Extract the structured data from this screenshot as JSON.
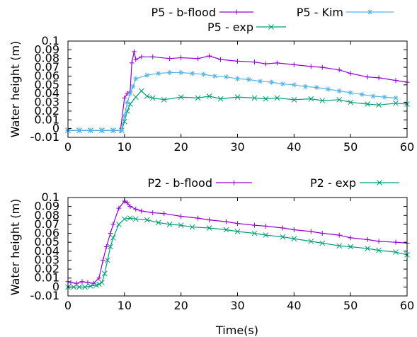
{
  "chart_data": [
    {
      "type": "line",
      "title": "",
      "xlabel": "",
      "ylabel": "Water height (m)",
      "xlim": [
        0,
        60
      ],
      "ylim": [
        -0.01,
        0.1
      ],
      "xticks": [
        "0",
        "10",
        "20",
        "30",
        "40",
        "50",
        "60"
      ],
      "yticks": [
        "-0.01",
        "0",
        "0.01",
        "0.02",
        "0.03",
        "0.04",
        "0.05",
        "0.06",
        "0.07",
        "0.08",
        "0.09",
        "0.1"
      ],
      "grid": false,
      "legend_position": "top",
      "series": [
        {
          "name": "P5 - b-flood",
          "color": "#9400d3",
          "marker": "plus",
          "x": [
            -0.5,
            2,
            4,
            6,
            8,
            9.3,
            10,
            10.5,
            11,
            11.3,
            11.7,
            12,
            13,
            15,
            18,
            20,
            23,
            25,
            27,
            30,
            33,
            35,
            37,
            40,
            43,
            45,
            48,
            50,
            53,
            55,
            58,
            60
          ],
          "y": [
            -0.002,
            -0.002,
            -0.002,
            -0.002,
            -0.002,
            -0.002,
            0.035,
            0.04,
            0.042,
            0.075,
            0.088,
            0.079,
            0.082,
            0.082,
            0.08,
            0.081,
            0.08,
            0.083,
            0.079,
            0.077,
            0.076,
            0.074,
            0.075,
            0.073,
            0.071,
            0.07,
            0.067,
            0.063,
            0.059,
            0.058,
            0.055,
            0.053
          ]
        },
        {
          "name": "P5 - exp",
          "color": "#009e73",
          "marker": "cross",
          "x": [
            -0.5,
            2,
            4,
            6,
            8,
            9.5,
            10,
            10.5,
            11,
            12,
            13,
            14,
            15,
            17,
            20,
            23,
            25,
            27,
            30,
            33,
            35,
            37,
            40,
            43,
            45,
            48,
            50,
            53,
            55,
            58,
            60
          ],
          "y": [
            -0.002,
            -0.002,
            -0.002,
            -0.002,
            -0.002,
            -0.002,
            0.008,
            0.02,
            0.028,
            0.036,
            0.043,
            0.037,
            0.035,
            0.033,
            0.036,
            0.035,
            0.037,
            0.034,
            0.036,
            0.035,
            0.034,
            0.035,
            0.033,
            0.034,
            0.032,
            0.033,
            0.03,
            0.028,
            0.027,
            0.029,
            0.028
          ]
        },
        {
          "name": "P5 - Kim",
          "color": "#56b4e9",
          "marker": "star",
          "x": [
            -0.5,
            2,
            4,
            6,
            8,
            9.5,
            10,
            10.5,
            11,
            11.5,
            12,
            14,
            16,
            18,
            20,
            22,
            24,
            26,
            28,
            30,
            32,
            34,
            36,
            38,
            40,
            42,
            44,
            46,
            48,
            50,
            52,
            54,
            56,
            58
          ],
          "y": [
            -0.002,
            -0.002,
            -0.002,
            -0.002,
            -0.002,
            -0.002,
            0.015,
            0.03,
            0.04,
            0.048,
            0.057,
            0.061,
            0.063,
            0.064,
            0.064,
            0.063,
            0.062,
            0.06,
            0.059,
            0.057,
            0.056,
            0.054,
            0.053,
            0.051,
            0.05,
            0.048,
            0.047,
            0.045,
            0.043,
            0.041,
            0.039,
            0.037,
            0.036,
            0.035
          ]
        }
      ]
    },
    {
      "type": "line",
      "title": "",
      "xlabel": "Time(s)",
      "ylabel": "Water height (m)",
      "xlim": [
        0,
        60
      ],
      "ylim": [
        -0.01,
        0.1
      ],
      "xticks": [
        "0",
        "10",
        "20",
        "30",
        "40",
        "50",
        "60"
      ],
      "yticks": [
        "-0.01",
        "0",
        "0.01",
        "0.02",
        "0.03",
        "0.04",
        "0.05",
        "0.06",
        "0.07",
        "0.08",
        "0.09",
        "0.1"
      ],
      "grid": false,
      "legend_position": "top",
      "series": [
        {
          "name": "P2 - b-flood",
          "color": "#9400d3",
          "marker": "plus",
          "x": [
            -0.5,
            0.5,
            1.5,
            2.5,
            3.5,
            4.5,
            5.5,
            6.2,
            6.8,
            7.5,
            8,
            9,
            10,
            10.5,
            11,
            12,
            13,
            15,
            17,
            20,
            23,
            25,
            28,
            30,
            33,
            35,
            38,
            40,
            43,
            45,
            48,
            50,
            53,
            55,
            58,
            60
          ],
          "y": [
            0.006,
            0.005,
            0.004,
            0.006,
            0.005,
            0.004,
            0.01,
            0.03,
            0.045,
            0.06,
            0.07,
            0.088,
            0.096,
            0.094,
            0.09,
            0.087,
            0.085,
            0.083,
            0.082,
            0.079,
            0.077,
            0.075,
            0.073,
            0.071,
            0.069,
            0.068,
            0.066,
            0.064,
            0.062,
            0.06,
            0.058,
            0.055,
            0.053,
            0.051,
            0.05,
            0.049
          ]
        },
        {
          "name": "P2 - exp",
          "color": "#009e73",
          "marker": "cross",
          "x": [
            -0.5,
            1,
            2,
            3,
            4,
            5,
            5.5,
            6,
            6.5,
            7,
            7.5,
            8,
            9,
            10,
            11,
            12,
            14,
            16,
            18,
            20,
            22,
            25,
            28,
            30,
            33,
            35,
            38,
            40,
            43,
            45,
            48,
            50,
            53,
            55,
            58,
            60
          ],
          "y": [
            0.0,
            0.0,
            0.0,
            0.0,
            0.001,
            0.002,
            0.003,
            0.005,
            0.015,
            0.03,
            0.045,
            0.055,
            0.07,
            0.076,
            0.077,
            0.076,
            0.075,
            0.072,
            0.07,
            0.069,
            0.067,
            0.066,
            0.064,
            0.062,
            0.06,
            0.058,
            0.056,
            0.054,
            0.051,
            0.049,
            0.046,
            0.045,
            0.043,
            0.041,
            0.039,
            0.036
          ]
        }
      ]
    }
  ]
}
